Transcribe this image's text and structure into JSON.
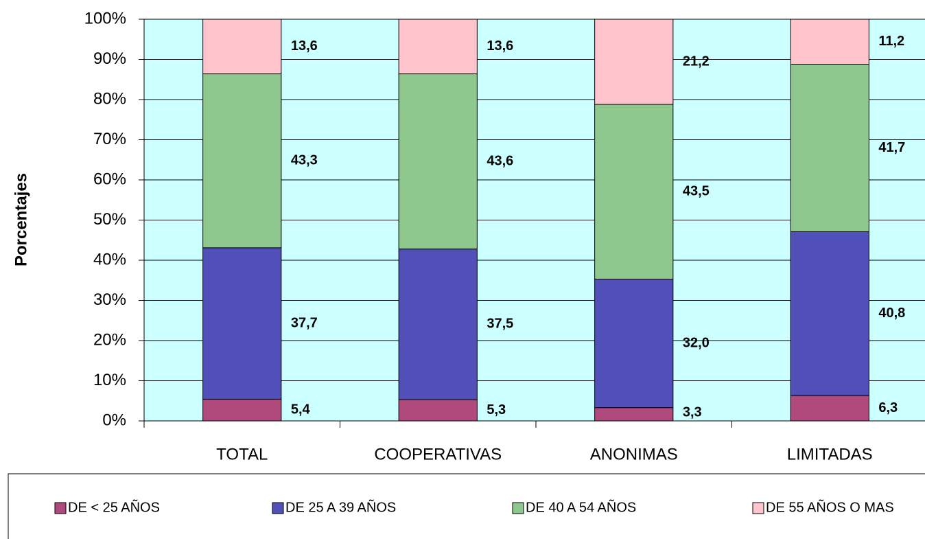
{
  "chart_data": {
    "type": "stacked_bar",
    "y_axis_label": "Porcentajes",
    "categories": [
      "TOTAL",
      "COOPERATIVAS",
      "ANONIMAS",
      "LIMITADAS"
    ],
    "series": [
      {
        "name": "DE < 25 AÑOS",
        "color": "#b04a7c",
        "values": [
          5.4,
          5.3,
          3.3,
          6.3
        ],
        "value_labels": [
          "5,4",
          "5,3",
          "3,3",
          "6,3"
        ]
      },
      {
        "name": "DE 25 A 39 AÑOS",
        "color": "#5050b8",
        "values": [
          37.7,
          37.5,
          32.0,
          40.8
        ],
        "value_labels": [
          "37,7",
          "37,5",
          "32,0",
          "40,8"
        ]
      },
      {
        "name": "DE 40 A 54 AÑOS",
        "color": "#8fc88f",
        "values": [
          43.3,
          43.6,
          43.5,
          41.7
        ],
        "value_labels": [
          "43,3",
          "43,6",
          "43,5",
          "41,7"
        ]
      },
      {
        "name": "DE 55 AÑOS O MAS",
        "color": "#ffc4cc",
        "values": [
          13.6,
          13.6,
          21.2,
          11.2
        ],
        "value_labels": [
          "13,6",
          "13,6",
          "21,2",
          "11,2"
        ]
      }
    ],
    "ylim": [
      0,
      100
    ],
    "yticks": [
      {
        "value": 0,
        "label": "0%"
      },
      {
        "value": 10,
        "label": "10%"
      },
      {
        "value": 20,
        "label": "20%"
      },
      {
        "value": 30,
        "label": "30%"
      },
      {
        "value": 40,
        "label": "40%"
      },
      {
        "value": 50,
        "label": "50%"
      },
      {
        "value": 60,
        "label": "60%"
      },
      {
        "value": 70,
        "label": "70%"
      },
      {
        "value": 80,
        "label": "80%"
      },
      {
        "value": 90,
        "label": "90%"
      },
      {
        "value": 100,
        "label": "100%"
      }
    ],
    "grid": true,
    "background": "#ccffff",
    "legend": "bottom"
  }
}
